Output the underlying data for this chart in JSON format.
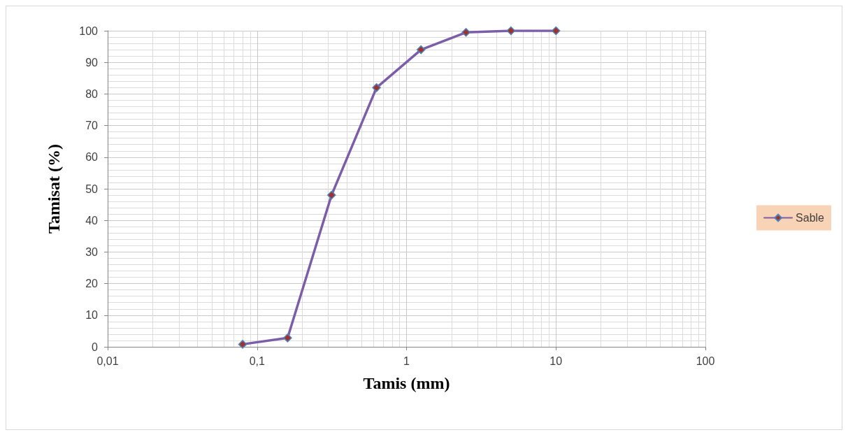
{
  "chart_data": {
    "type": "line",
    "xlabel": "Tamis (mm)",
    "ylabel": "Tamisat (%)",
    "x": [
      0.08,
      0.16,
      0.315,
      0.63,
      1.25,
      2.5,
      5,
      10
    ],
    "series": [
      {
        "name": "Sable",
        "color": "#7b5ea7",
        "values": [
          0.8,
          2.8,
          48,
          82,
          94,
          99.5,
          100,
          100
        ]
      }
    ],
    "log": "x",
    "xlim": [
      0.01,
      100
    ],
    "xticks": [
      {
        "value": 0.01,
        "label": "0,01"
      },
      {
        "value": 0.1,
        "label": "0,1"
      },
      1,
      10,
      100
    ],
    "ylim": [
      0,
      100
    ],
    "yticks": [
      0,
      10,
      20,
      30,
      40,
      50,
      60,
      70,
      80,
      90,
      100
    ],
    "grid": true,
    "legend": "right",
    "marker": "diamond",
    "line_style": "solid"
  }
}
